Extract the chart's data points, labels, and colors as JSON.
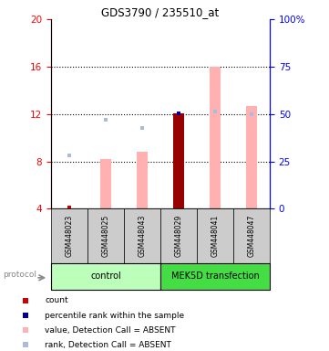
{
  "title": "GDS3790 / 235510_at",
  "samples": [
    "GSM448023",
    "GSM448025",
    "GSM448043",
    "GSM448029",
    "GSM448041",
    "GSM448047"
  ],
  "ylim": [
    4,
    20
  ],
  "ylim_right": [
    0,
    100
  ],
  "yticks_left": [
    4,
    8,
    12,
    16,
    20
  ],
  "yticks_right": [
    0,
    25,
    50,
    75,
    100
  ],
  "bar_values": [
    null,
    8.2,
    8.8,
    12.05,
    16.0,
    12.7
  ],
  "bar_color_absent": "#FFB0B0",
  "bar_color_present": "#990000",
  "rank_values": [
    8.5,
    11.5,
    10.8,
    12.05,
    12.2,
    12.0
  ],
  "rank_color_absent": "#AABBDD",
  "rank_color_present": "#000099",
  "count_values": [
    4.1,
    null,
    null,
    null,
    null,
    null
  ],
  "count_color": "#CC0000",
  "present_flags": [
    false,
    false,
    false,
    true,
    false,
    false
  ],
  "ctrl_color": "#BBFFBB",
  "mek_color": "#44DD44",
  "sample_box_color": "#CCCCCC",
  "protocol_label": "protocol",
  "legend_items": [
    {
      "color": "#CC0000",
      "label": "count"
    },
    {
      "color": "#000099",
      "label": "percentile rank within the sample"
    },
    {
      "color": "#FFB0B0",
      "label": "value, Detection Call = ABSENT"
    },
    {
      "color": "#AABBDD",
      "label": "rank, Detection Call = ABSENT"
    }
  ]
}
